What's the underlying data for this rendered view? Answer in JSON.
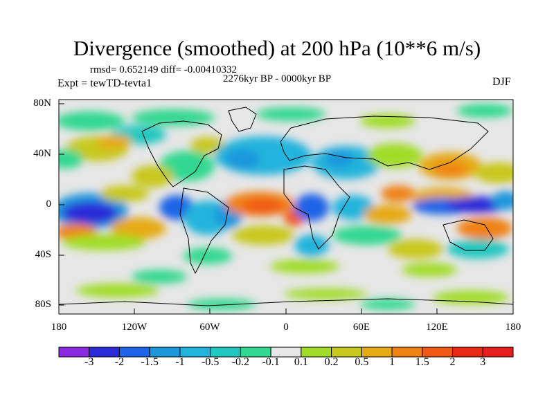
{
  "title": "Divergence (smoothed) at 200 hPa (10**6 m/s)",
  "stats": "rmsd= 0.652149 diff= -0.00410332",
  "period": "2276kyr BP - 0000kyr BP",
  "experiment": "Expt = tewTD-tevta1",
  "season": "DJF",
  "lat_labels": [
    "80N",
    "40N",
    "0",
    "40S",
    "80S"
  ],
  "lon_labels": [
    "180",
    "120W",
    "60W",
    "0",
    "60E",
    "120E",
    "180"
  ],
  "colorbar": {
    "labels": [
      "-3",
      "-2",
      "-1.5",
      "-1",
      "-0.5",
      "-0.2",
      "-0.1",
      "0.1",
      "0.2",
      "0.5",
      "1",
      "1.5",
      "2",
      "3"
    ],
    "colors": [
      "#8a2be2",
      "#2b2bd8",
      "#1e64e6",
      "#1e96dc",
      "#20b4dc",
      "#20c8c0",
      "#30d890",
      "#e6e6e6",
      "#a0dc28",
      "#c8c81e",
      "#e6aa14",
      "#f08214",
      "#f05a14",
      "#e62814",
      "#e61e1e"
    ]
  },
  "map_colors": {
    "neutral": "#e6e6e6",
    "coast": "#000000"
  }
}
